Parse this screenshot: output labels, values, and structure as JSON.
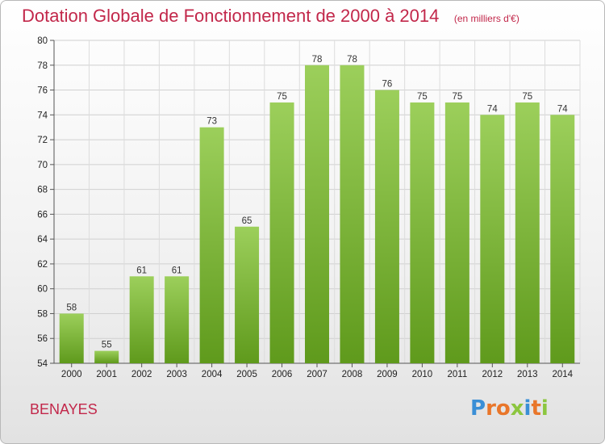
{
  "chart_data": {
    "type": "bar",
    "title": "Dotation Globale de Fonctionnement de 2000 à 2014",
    "subtitle": "(en milliers d'€)",
    "categories": [
      "2000",
      "2001",
      "2002",
      "2003",
      "2004",
      "2005",
      "2006",
      "2007",
      "2008",
      "2009",
      "2010",
      "2011",
      "2012",
      "2013",
      "2014"
    ],
    "values": [
      58,
      55,
      61,
      61,
      73,
      65,
      75,
      78,
      78,
      76,
      75,
      75,
      74,
      75,
      74
    ],
    "ylim": [
      54,
      80
    ],
    "yticks": [
      54,
      56,
      58,
      60,
      62,
      64,
      66,
      68,
      70,
      72,
      74,
      76,
      78,
      80
    ],
    "xlabel": "",
    "ylabel": "",
    "grid": true,
    "bar_color": "#7ab934",
    "title_color": "#c2274a"
  },
  "footer": {
    "commune": "BENAYES",
    "logo_text": "Proxiti",
    "logo_colors": [
      "#3a8fd6",
      "#e9762a",
      "#e9762a",
      "#8cc63f",
      "#3a8fd6",
      "#e9762a",
      "#8cc63f"
    ]
  }
}
